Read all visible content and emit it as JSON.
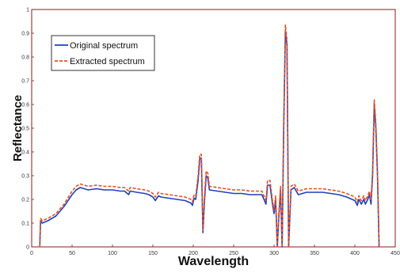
{
  "chart_data": {
    "type": "line",
    "title": "",
    "xlabel": "Wavelength",
    "ylabel": "Reflectance",
    "xlim": [
      0,
      450
    ],
    "ylim": [
      0,
      1
    ],
    "xticks": [
      0,
      50,
      100,
      150,
      200,
      250,
      300,
      350,
      400,
      450
    ],
    "yticks": [
      0,
      0.1,
      0.2,
      0.3,
      0.4,
      0.5,
      0.6,
      0.7,
      0.8,
      0.9,
      1
    ],
    "legend_position": "top-left",
    "grid": false,
    "series": [
      {
        "name": "Original spectrum",
        "color": "#1f3fbf",
        "style": "solid",
        "points": [
          [
            10,
            0.0
          ],
          [
            11,
            0.11
          ],
          [
            13,
            0.1
          ],
          [
            20,
            0.11
          ],
          [
            30,
            0.13
          ],
          [
            40,
            0.17
          ],
          [
            50,
            0.22
          ],
          [
            55,
            0.24
          ],
          [
            60,
            0.25
          ],
          [
            70,
            0.24
          ],
          [
            80,
            0.245
          ],
          [
            90,
            0.24
          ],
          [
            100,
            0.24
          ],
          [
            110,
            0.235
          ],
          [
            115,
            0.235
          ],
          [
            120,
            0.22
          ],
          [
            122,
            0.235
          ],
          [
            130,
            0.23
          ],
          [
            140,
            0.225
          ],
          [
            145,
            0.22
          ],
          [
            150,
            0.21
          ],
          [
            153,
            0.195
          ],
          [
            157,
            0.215
          ],
          [
            160,
            0.21
          ],
          [
            170,
            0.205
          ],
          [
            180,
            0.2
          ],
          [
            190,
            0.195
          ],
          [
            197,
            0.185
          ],
          [
            199,
            0.175
          ],
          [
            201,
            0.205
          ],
          [
            203,
            0.2
          ],
          [
            206,
            0.28
          ],
          [
            208,
            0.37
          ],
          [
            210,
            0.375
          ],
          [
            212,
            0.06
          ],
          [
            214,
            0.2
          ],
          [
            216,
            0.3
          ],
          [
            218,
            0.29
          ],
          [
            220,
            0.24
          ],
          [
            230,
            0.235
          ],
          [
            240,
            0.23
          ],
          [
            250,
            0.225
          ],
          [
            260,
            0.225
          ],
          [
            270,
            0.22
          ],
          [
            280,
            0.22
          ],
          [
            285,
            0.22
          ],
          [
            290,
            0.18
          ],
          [
            292,
            0.26
          ],
          [
            295,
            0.26
          ],
          [
            298,
            0.18
          ],
          [
            300,
            0.14
          ],
          [
            302,
            0.2
          ],
          [
            304,
            0.0
          ],
          [
            306,
            0.13
          ],
          [
            308,
            0.24
          ],
          [
            310,
            0.0
          ],
          [
            312,
            0.5
          ],
          [
            314,
            0.91
          ],
          [
            316,
            0.85
          ],
          [
            318,
            0.0
          ],
          [
            321,
            0.24
          ],
          [
            325,
            0.25
          ],
          [
            330,
            0.22
          ],
          [
            340,
            0.23
          ],
          [
            350,
            0.23
          ],
          [
            360,
            0.23
          ],
          [
            370,
            0.225
          ],
          [
            380,
            0.22
          ],
          [
            390,
            0.21
          ],
          [
            400,
            0.195
          ],
          [
            403,
            0.175
          ],
          [
            405,
            0.2
          ],
          [
            408,
            0.18
          ],
          [
            411,
            0.2
          ],
          [
            413,
            0.18
          ],
          [
            416,
            0.2
          ],
          [
            418,
            0.22
          ],
          [
            420,
            0.18
          ],
          [
            422,
            0.3
          ],
          [
            424,
            0.6
          ],
          [
            426,
            0.5
          ],
          [
            428,
            0.3
          ],
          [
            430,
            0.0
          ]
        ]
      },
      {
        "name": "Extracted spectrum",
        "color": "#e8501e",
        "style": "dashed",
        "points": [
          [
            10,
            0.0
          ],
          [
            11,
            0.12
          ],
          [
            13,
            0.11
          ],
          [
            20,
            0.12
          ],
          [
            30,
            0.14
          ],
          [
            40,
            0.18
          ],
          [
            50,
            0.235
          ],
          [
            55,
            0.255
          ],
          [
            60,
            0.265
          ],
          [
            70,
            0.255
          ],
          [
            80,
            0.26
          ],
          [
            90,
            0.255
          ],
          [
            100,
            0.255
          ],
          [
            110,
            0.25
          ],
          [
            115,
            0.25
          ],
          [
            120,
            0.235
          ],
          [
            122,
            0.25
          ],
          [
            130,
            0.245
          ],
          [
            140,
            0.24
          ],
          [
            145,
            0.235
          ],
          [
            150,
            0.225
          ],
          [
            153,
            0.21
          ],
          [
            157,
            0.23
          ],
          [
            160,
            0.225
          ],
          [
            170,
            0.22
          ],
          [
            180,
            0.215
          ],
          [
            190,
            0.21
          ],
          [
            197,
            0.2
          ],
          [
            199,
            0.19
          ],
          [
            201,
            0.22
          ],
          [
            203,
            0.215
          ],
          [
            206,
            0.3
          ],
          [
            208,
            0.39
          ],
          [
            210,
            0.39
          ],
          [
            212,
            0.07
          ],
          [
            214,
            0.22
          ],
          [
            216,
            0.32
          ],
          [
            218,
            0.31
          ],
          [
            220,
            0.255
          ],
          [
            230,
            0.25
          ],
          [
            240,
            0.245
          ],
          [
            250,
            0.24
          ],
          [
            260,
            0.24
          ],
          [
            270,
            0.235
          ],
          [
            280,
            0.235
          ],
          [
            285,
            0.235
          ],
          [
            290,
            0.195
          ],
          [
            292,
            0.28
          ],
          [
            295,
            0.28
          ],
          [
            298,
            0.195
          ],
          [
            300,
            0.155
          ],
          [
            302,
            0.215
          ],
          [
            304,
            0.0
          ],
          [
            306,
            0.145
          ],
          [
            308,
            0.255
          ],
          [
            310,
            0.0
          ],
          [
            312,
            0.52
          ],
          [
            314,
            0.935
          ],
          [
            316,
            0.87
          ],
          [
            318,
            0.0
          ],
          [
            321,
            0.255
          ],
          [
            325,
            0.265
          ],
          [
            330,
            0.235
          ],
          [
            340,
            0.245
          ],
          [
            350,
            0.245
          ],
          [
            360,
            0.245
          ],
          [
            370,
            0.24
          ],
          [
            380,
            0.235
          ],
          [
            390,
            0.225
          ],
          [
            400,
            0.21
          ],
          [
            403,
            0.19
          ],
          [
            405,
            0.215
          ],
          [
            408,
            0.195
          ],
          [
            411,
            0.215
          ],
          [
            413,
            0.195
          ],
          [
            416,
            0.215
          ],
          [
            418,
            0.235
          ],
          [
            420,
            0.195
          ],
          [
            422,
            0.32
          ],
          [
            424,
            0.62
          ],
          [
            426,
            0.52
          ],
          [
            428,
            0.32
          ],
          [
            430,
            0.0
          ]
        ]
      }
    ]
  }
}
